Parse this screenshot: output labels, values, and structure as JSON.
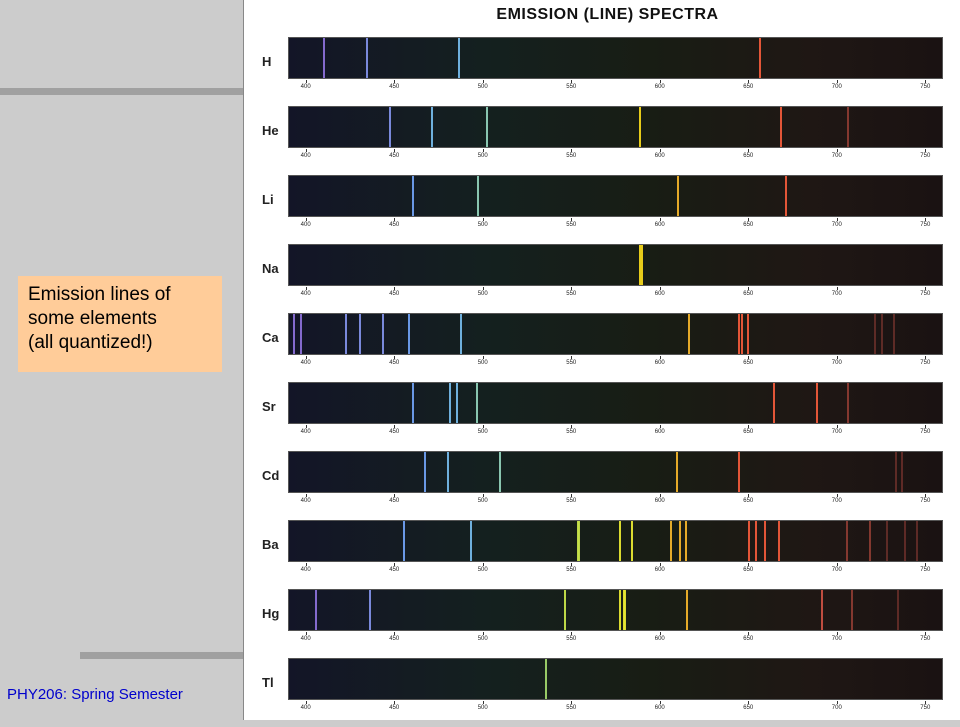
{
  "slide": {
    "callout_lines": [
      "Emission lines of",
      "some elements",
      "(all quantized!)"
    ],
    "footer": "PHY206: Spring Semester"
  },
  "figure": {
    "title": "EMISSION (LINE) SPECTRA",
    "axis_ticks": [
      "400",
      "450",
      "500",
      "550",
      "600",
      "650",
      "700",
      "750"
    ],
    "wavelength_range_nm": [
      390,
      760
    ],
    "spectra": [
      {
        "element": "H",
        "lines": [
          410,
          434,
          486,
          656
        ]
      },
      {
        "element": "He",
        "lines": [
          447,
          471,
          502,
          588,
          668,
          706
        ]
      },
      {
        "element": "Li",
        "lines": [
          460,
          497,
          610,
          671
        ]
      },
      {
        "element": "Na",
        "lines": [
          589
        ]
      },
      {
        "element": "Ca",
        "lines": [
          393,
          397,
          422,
          430,
          443,
          458,
          487,
          616,
          644,
          646,
          649,
          721,
          725,
          732
        ]
      },
      {
        "element": "Sr",
        "lines": [
          460,
          481,
          485,
          496,
          664,
          688,
          706
        ]
      },
      {
        "element": "Cd",
        "lines": [
          467,
          480,
          509,
          609,
          644,
          733,
          736
        ]
      },
      {
        "element": "Ba",
        "lines": [
          455,
          493,
          553,
          554,
          577,
          584,
          606,
          611,
          614,
          650,
          654,
          659,
          667,
          705,
          718,
          728,
          738,
          745
        ]
      },
      {
        "element": "Hg",
        "lines": [
          405,
          436,
          546,
          577,
          579,
          580,
          615,
          691,
          708,
          734
        ]
      },
      {
        "element": "Tl",
        "lines": [
          535
        ]
      }
    ]
  }
}
